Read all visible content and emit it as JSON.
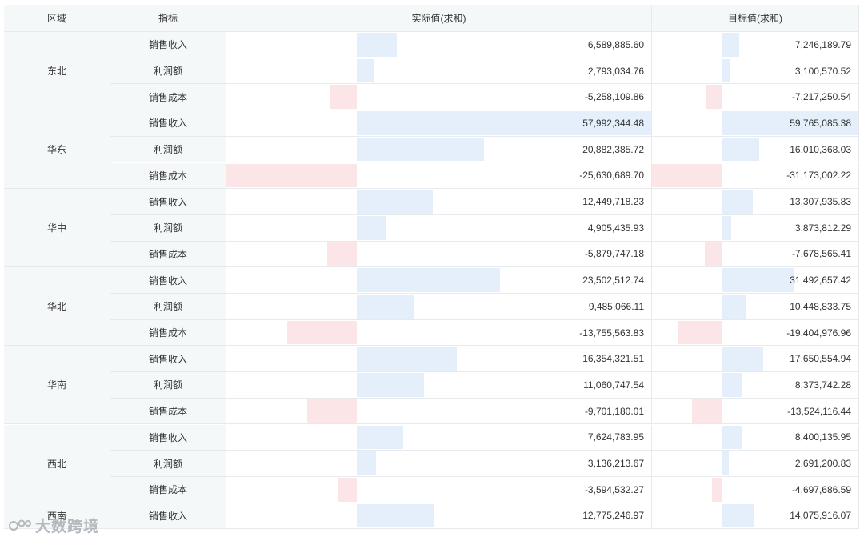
{
  "headers": {
    "region": "区域",
    "metric": "指标",
    "actual": "实际值(求和)",
    "target": "目标值(求和)"
  },
  "watermark": "大数跨境",
  "colors": {
    "header_bg": "#f4f8f9",
    "grid": "#e6eaed",
    "positive_bar": "#e5effb",
    "negative_bar": "#fce5e6"
  },
  "chart_data": {
    "type": "table",
    "columns": [
      "区域",
      "指标",
      "实际值(求和)",
      "目标值(求和)"
    ],
    "bar_scale": {
      "actual_max_positive": 57992344.48,
      "actual_min_negative": -25630689.7,
      "target_max_positive": 59765085.38,
      "target_min_negative": -31173002.22
    },
    "regions": [
      {
        "name": "东北",
        "rows": [
          {
            "metric": "销售收入",
            "actual": 6589885.6,
            "actual_label": "6,589,885.60",
            "target": 7246189.79,
            "target_label": "7,246,189.79"
          },
          {
            "metric": "利润额",
            "actual": 2793034.76,
            "actual_label": "2,793,034.76",
            "target": 3100570.52,
            "target_label": "3,100,570.52"
          },
          {
            "metric": "销售成本",
            "actual": -5258109.86,
            "actual_label": "-5,258,109.86",
            "target": -7217250.54,
            "target_label": "-7,217,250.54"
          }
        ]
      },
      {
        "name": "华东",
        "rows": [
          {
            "metric": "销售收入",
            "actual": 57992344.48,
            "actual_label": "57,992,344.48",
            "target": 59765085.38,
            "target_label": "59,765,085.38"
          },
          {
            "metric": "利润额",
            "actual": 20882385.72,
            "actual_label": "20,882,385.72",
            "target": 16010368.03,
            "target_label": "16,010,368.03"
          },
          {
            "metric": "销售成本",
            "actual": -25630689.7,
            "actual_label": "-25,630,689.70",
            "target": -31173002.22,
            "target_label": "-31,173,002.22"
          }
        ]
      },
      {
        "name": "华中",
        "rows": [
          {
            "metric": "销售收入",
            "actual": 12449718.23,
            "actual_label": "12,449,718.23",
            "target": 13307935.83,
            "target_label": "13,307,935.83"
          },
          {
            "metric": "利润额",
            "actual": 4905435.93,
            "actual_label": "4,905,435.93",
            "target": 3873812.29,
            "target_label": "3,873,812.29"
          },
          {
            "metric": "销售成本",
            "actual": -5879747.18,
            "actual_label": "-5,879,747.18",
            "target": -7678565.41,
            "target_label": "-7,678,565.41"
          }
        ]
      },
      {
        "name": "华北",
        "rows": [
          {
            "metric": "销售收入",
            "actual": 23502512.74,
            "actual_label": "23,502,512.74",
            "target": 31492657.42,
            "target_label": "31,492,657.42"
          },
          {
            "metric": "利润额",
            "actual": 9485066.11,
            "actual_label": "9,485,066.11",
            "target": 10448833.75,
            "target_label": "10,448,833.75"
          },
          {
            "metric": "销售成本",
            "actual": -13755563.83,
            "actual_label": "-13,755,563.83",
            "target": -19404976.96,
            "target_label": "-19,404,976.96"
          }
        ]
      },
      {
        "name": "华南",
        "rows": [
          {
            "metric": "销售收入",
            "actual": 16354321.51,
            "actual_label": "16,354,321.51",
            "target": 17650554.94,
            "target_label": "17,650,554.94"
          },
          {
            "metric": "利润额",
            "actual": 11060747.54,
            "actual_label": "11,060,747.54",
            "target": 8373742.28,
            "target_label": "8,373,742.28"
          },
          {
            "metric": "销售成本",
            "actual": -9701180.01,
            "actual_label": "-9,701,180.01",
            "target": -13524116.44,
            "target_label": "-13,524,116.44"
          }
        ]
      },
      {
        "name": "西北",
        "rows": [
          {
            "metric": "销售收入",
            "actual": 7624783.95,
            "actual_label": "7,624,783.95",
            "target": 8400135.95,
            "target_label": "8,400,135.95"
          },
          {
            "metric": "利润额",
            "actual": 3136213.67,
            "actual_label": "3,136,213.67",
            "target": 2691200.83,
            "target_label": "2,691,200.83"
          },
          {
            "metric": "销售成本",
            "actual": -3594532.27,
            "actual_label": "-3,594,532.27",
            "target": -4697686.59,
            "target_label": "-4,697,686.59"
          }
        ]
      },
      {
        "name": "西南",
        "rows": [
          {
            "metric": "销售收入",
            "actual": 12775246.97,
            "actual_label": "12,775,246.97",
            "target": 14075916.07,
            "target_label": "14,075,916.07"
          }
        ]
      }
    ]
  }
}
